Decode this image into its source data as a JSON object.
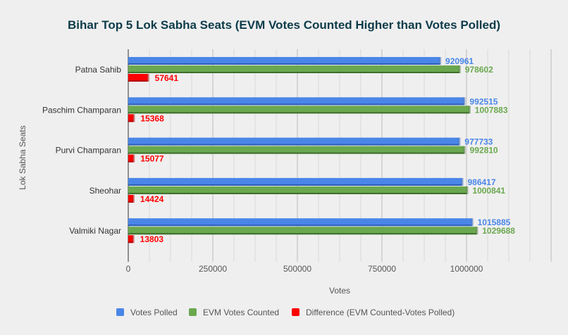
{
  "chart_data": {
    "type": "bar",
    "orientation": "horizontal",
    "title": "Bihar Top 5 Lok Sabha Seats (EVM Votes Counted Higher than Votes Polled)",
    "xlabel": "Votes",
    "ylabel": "Lok Sabha Seats",
    "xlim": [
      0,
      1250000
    ],
    "xticks": [
      "0",
      "250000",
      "500000",
      "750000",
      "1000000"
    ],
    "grid": true,
    "legend": "bottom",
    "categories": [
      "Patna Sahib",
      "Paschim Champaran",
      "Purvi Champaran",
      "Sheohar",
      "Valmiki Nagar"
    ],
    "series": [
      {
        "name": "Votes Polled",
        "color": "#4a86e8",
        "values": [
          920961,
          992515,
          977733,
          986417,
          1015885
        ]
      },
      {
        "name": "EVM Votes Counted",
        "color": "#6aa84f",
        "values": [
          978602,
          1007883,
          992810,
          1000841,
          1029688
        ]
      },
      {
        "name": "Difference (EVM Counted-Votes Polled)",
        "color": "#ff0000",
        "values": [
          57641,
          15368,
          15077,
          14424,
          13803
        ]
      }
    ]
  }
}
